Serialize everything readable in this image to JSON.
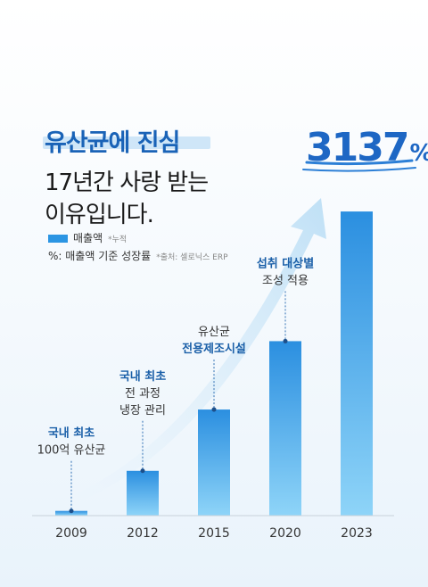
{
  "header": {
    "headline": "유산균에 진심",
    "subtitle_line1": "17년간 사랑 받는",
    "subtitle_line2": "이유입니다."
  },
  "legend": {
    "sales_label": "매출액",
    "sales_note": "*누적",
    "growth_label": "%: 매출액 기준 성장률",
    "source_note": "*출처: 셀로닉스 ERP"
  },
  "total": {
    "value": "3137",
    "unit": "%"
  },
  "colors": {
    "bar_top": "#2b8fe0",
    "bar_bottom": "#8ed4f8",
    "accent": "#1a63b7",
    "arrow": "#cfe7f8"
  },
  "chart_data": {
    "type": "bar",
    "categories": [
      "2009",
      "2012",
      "2015",
      "2020",
      "2023"
    ],
    "values": [
      1,
      9.5,
      22.5,
      37,
      64.5
    ],
    "ylim": [
      0,
      70
    ],
    "grid": false,
    "annotations": [
      {
        "category": "2009",
        "strong": "국내 최초",
        "lines": [
          "100억 유산균"
        ],
        "strong_first": true
      },
      {
        "category": "2012",
        "strong": "국내 최초",
        "lines": [
          "전 과정",
          "냉장 관리"
        ],
        "strong_first": true
      },
      {
        "category": "2015",
        "strong": "전용제조시설",
        "lines": [
          "유산균"
        ],
        "strong_first": false
      },
      {
        "category": "2020",
        "strong": "섭취 대상별",
        "lines": [
          "조성 적용"
        ],
        "strong_first": true
      }
    ]
  }
}
